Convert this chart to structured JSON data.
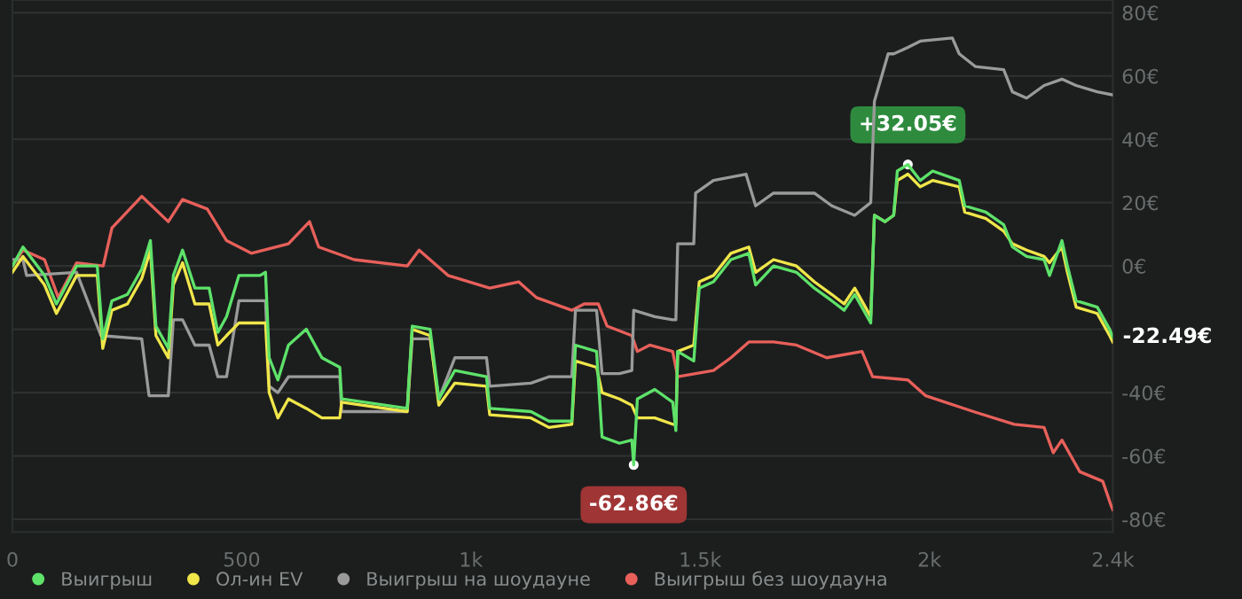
{
  "chart_data": {
    "type": "line",
    "xlim": [
      0,
      2400
    ],
    "ylim": [
      -84,
      84
    ],
    "xticks": [
      0,
      500,
      {
        "value": 1000,
        "label": "1k"
      },
      {
        "value": 1500,
        "label": "1.5k"
      },
      {
        "value": 2000,
        "label": "2k"
      },
      {
        "value": 2400,
        "label": "2.4k"
      }
    ],
    "yticks": [
      {
        "value": 80,
        "label": "80€"
      },
      {
        "value": 60,
        "label": "60€"
      },
      {
        "value": 40,
        "label": "40€"
      },
      {
        "value": 20,
        "label": "20€"
      },
      {
        "value": 0,
        "label": "0€"
      },
      {
        "value": -20,
        "label": null
      },
      {
        "value": -40,
        "label": "-40€"
      },
      {
        "value": -60,
        "label": "-60€"
      },
      {
        "value": -80,
        "label": "-80€"
      }
    ],
    "grid": "y",
    "legend": "bottom",
    "marker": "none",
    "line_style": "solid",
    "annotations": [
      {
        "text": "+32.05€",
        "x": 1953,
        "y": 32.05
      },
      {
        "text": "-62.86€",
        "x": 1355,
        "y": -62.86
      },
      {
        "text": "-22.49€",
        "x": 2400,
        "y": -22.49
      }
    ],
    "series": [
      {
        "name": "Выигрыш",
        "color": "#5ee26a",
        "x": [
          0,
          23,
          70,
          96,
          140,
          185,
          197,
          217,
          251,
          282,
          301,
          313,
          340,
          351,
          371,
          398,
          429,
          448,
          467,
          494,
          540,
          552,
          560,
          579,
          602,
          641,
          675,
          714,
          718,
          861,
          872,
          911,
          930,
          965,
          1034,
          1041,
          1131,
          1170,
          1220,
          1228,
          1274,
          1286,
          1324,
          1351,
          1355,
          1363,
          1401,
          1440,
          1447,
          1451,
          1486,
          1498,
          1529,
          1567,
          1606,
          1621,
          1660,
          1710,
          1749,
          1787,
          1814,
          1837,
          1872,
          1880,
          1903,
          1922,
          1930,
          1953,
          1980,
          2007,
          2065,
          2077,
          2123,
          2162,
          2181,
          2212,
          2250,
          2262,
          2289,
          2301,
          2320,
          2366,
          2393,
          2400
        ],
        "values": [
          0,
          6,
          -3,
          -12,
          0,
          0,
          -23,
          -11,
          -9,
          -1,
          8,
          -19,
          -26,
          -3,
          5,
          -7,
          -7,
          -21,
          -16,
          -3,
          -3,
          -2,
          -29,
          -36,
          -25,
          -20,
          -29,
          -32,
          -42,
          -45,
          -19,
          -20,
          -42,
          -33,
          -35,
          -45,
          -46,
          -49,
          -49,
          -25,
          -27,
          -54,
          -56,
          -55,
          -62.86,
          -42,
          -39,
          -43,
          -52,
          -27,
          -30,
          -7,
          -5,
          2,
          4,
          -6,
          0,
          -2,
          -7,
          -11,
          -14,
          -9,
          -18,
          16,
          14,
          16,
          30,
          32.05,
          27,
          30,
          27,
          19,
          17,
          13,
          6,
          3,
          2,
          -3,
          8,
          0,
          -11,
          -13,
          -20,
          -22.49
        ]
      },
      {
        "name": "Ол-ин EV",
        "color": "#f0e64a",
        "x": [
          0,
          23,
          70,
          96,
          140,
          185,
          197,
          217,
          251,
          282,
          301,
          313,
          340,
          351,
          371,
          398,
          429,
          448,
          467,
          494,
          552,
          560,
          579,
          602,
          641,
          675,
          714,
          718,
          861,
          872,
          911,
          930,
          965,
          1034,
          1041,
          1131,
          1170,
          1220,
          1228,
          1274,
          1286,
          1324,
          1351,
          1363,
          1401,
          1440,
          1447,
          1451,
          1486,
          1498,
          1529,
          1567,
          1606,
          1621,
          1660,
          1710,
          1749,
          1787,
          1814,
          1837,
          1872,
          1880,
          1903,
          1922,
          1930,
          1953,
          1980,
          2007,
          2065,
          2077,
          2123,
          2162,
          2181,
          2212,
          2250,
          2262,
          2289,
          2301,
          2320,
          2366,
          2393,
          2400
        ],
        "values": [
          -2,
          3,
          -6,
          -15,
          -3,
          -3,
          -26,
          -14,
          -12,
          -4,
          5,
          -22,
          -29,
          -6,
          1,
          -12,
          -12,
          -25,
          -22,
          -18,
          -18,
          -40,
          -48,
          -42,
          -45,
          -48,
          -48,
          -43,
          -46,
          -20,
          -22,
          -44,
          -37,
          -38,
          -47,
          -48,
          -51,
          -50,
          -30,
          -32,
          -40,
          -42,
          -44,
          -48,
          -48,
          -50,
          -50,
          -27,
          -25,
          -5,
          -3,
          4,
          6,
          -2,
          2,
          0,
          -5,
          -9,
          -12,
          -7,
          -16,
          16,
          14,
          16,
          27,
          29,
          25,
          27,
          25,
          17,
          15,
          11,
          7,
          5,
          3,
          1,
          6,
          -2,
          -13,
          -15,
          -22,
          -24
        ]
      },
      {
        "name": "Выигрыш на шоудауне",
        "color": "#9a9a9a",
        "x": [
          0,
          23,
          31,
          140,
          193,
          282,
          298,
          340,
          351,
          371,
          398,
          429,
          448,
          467,
          494,
          552,
          560,
          579,
          602,
          641,
          714,
          718,
          861,
          872,
          911,
          930,
          965,
          1034,
          1041,
          1131,
          1170,
          1220,
          1228,
          1274,
          1286,
          1324,
          1351,
          1355,
          1401,
          1440,
          1447,
          1451,
          1486,
          1490,
          1529,
          1600,
          1621,
          1660,
          1749,
          1787,
          1837,
          1872,
          1880,
          1910,
          1922,
          1953,
          1980,
          2050,
          2065,
          2100,
          2162,
          2181,
          2212,
          2250,
          2289,
          2320,
          2366,
          2400
        ],
        "values": [
          2,
          2,
          -3,
          -2,
          -22,
          -23,
          -41,
          -41,
          -17,
          -17,
          -25,
          -25,
          -35,
          -35,
          -11,
          -11,
          -38,
          -40,
          -35,
          -35,
          -35,
          -46,
          -46,
          -23,
          -23,
          -42,
          -29,
          -29,
          -38,
          -37,
          -35,
          -35,
          -14,
          -14,
          -34,
          -34,
          -33,
          -14,
          -16,
          -17,
          -17,
          7,
          7,
          23,
          27,
          29,
          19,
          23,
          23,
          19,
          16,
          20,
          52,
          67,
          67,
          69,
          71,
          72,
          67,
          63,
          62,
          55,
          53,
          57,
          59,
          57,
          55,
          54
        ]
      },
      {
        "name": "Выигрыш без шоудауна",
        "color": "#e8605a",
        "x": [
          0,
          23,
          70,
          100,
          140,
          198,
          217,
          282,
          340,
          371,
          425,
          467,
          521,
          602,
          648,
          668,
          745,
          861,
          887,
          950,
          1041,
          1104,
          1143,
          1220,
          1247,
          1278,
          1297,
          1351,
          1363,
          1390,
          1440,
          1451,
          1529,
          1567,
          1606,
          1660,
          1710,
          1776,
          1853,
          1876,
          1953,
          1992,
          2096,
          2185,
          2250,
          2270,
          2289,
          2328,
          2378,
          2397,
          2400
        ],
        "values": [
          0,
          5,
          2,
          -10,
          1,
          0,
          12,
          22,
          14,
          21,
          18,
          8,
          4,
          7,
          14,
          6,
          2,
          0,
          5,
          -3,
          -7,
          -5,
          -10,
          -14,
          -12,
          -12,
          -19,
          -22,
          -27,
          -25,
          -27,
          -35,
          -33,
          -29,
          -24,
          -24,
          -25,
          -29,
          -27,
          -35,
          -36,
          -41,
          -46,
          -50,
          -51,
          -59,
          -55,
          -65,
          -68,
          -76,
          -77
        ]
      }
    ]
  }
}
